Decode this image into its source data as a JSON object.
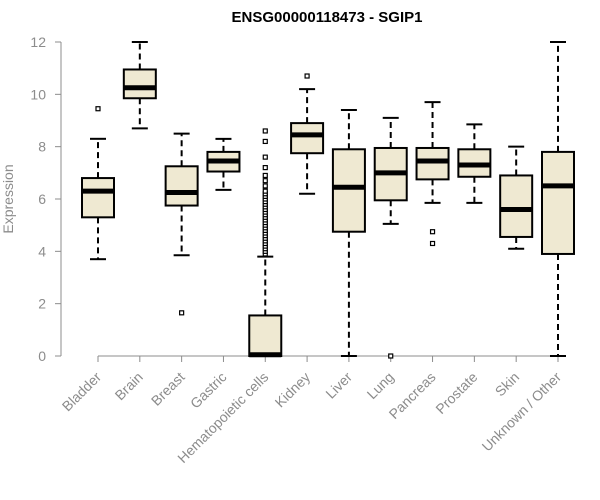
{
  "chart_data": {
    "type": "boxplot",
    "title": "ENSG00000118473 - SGIP1",
    "xlabel": "",
    "ylabel": "Expression",
    "ylim": [
      0,
      12
    ],
    "yticks": [
      "0",
      "2",
      "4",
      "6",
      "8",
      "10",
      "12"
    ],
    "categories": [
      "Bladder",
      "Brain",
      "Breast",
      "Gastric",
      "Hematopoietic cells",
      "Kidney",
      "Liver",
      "Lung",
      "Pancreas",
      "Prostate",
      "Skin",
      "Unknown / Other"
    ],
    "boxes": [
      {
        "name": "Bladder",
        "whisker_low": 3.7,
        "q1": 5.3,
        "median": 6.3,
        "q3": 6.8,
        "whisker_high": 8.3,
        "outliers": [
          9.45
        ]
      },
      {
        "name": "Brain",
        "whisker_low": 8.7,
        "q1": 9.85,
        "median": 10.25,
        "q3": 10.95,
        "whisker_high": 12.0,
        "outliers": []
      },
      {
        "name": "Breast",
        "whisker_low": 3.85,
        "q1": 5.75,
        "median": 6.25,
        "q3": 7.25,
        "whisker_high": 8.5,
        "outliers": [
          1.65
        ]
      },
      {
        "name": "Gastric",
        "whisker_low": 6.35,
        "q1": 7.05,
        "median": 7.45,
        "q3": 7.8,
        "whisker_high": 8.3,
        "outliers": []
      },
      {
        "name": "Hematopoietic cells",
        "whisker_low": 0.0,
        "q1": 0.0,
        "median": 0.05,
        "q3": 1.55,
        "whisker_high": 3.8,
        "outliers": [
          3.9,
          4.0,
          4.1,
          4.2,
          4.3,
          4.4,
          4.5,
          4.6,
          4.7,
          4.8,
          4.9,
          5.0,
          5.1,
          5.2,
          5.3,
          5.4,
          5.5,
          5.6,
          5.7,
          5.8,
          5.9,
          6.0,
          6.1,
          6.2,
          6.3,
          6.5,
          6.7,
          6.9,
          7.2,
          7.6,
          8.2,
          8.6
        ]
      },
      {
        "name": "Kidney",
        "whisker_low": 6.2,
        "q1": 7.75,
        "median": 8.45,
        "q3": 8.9,
        "whisker_high": 10.2,
        "outliers": [
          10.7
        ]
      },
      {
        "name": "Liver",
        "whisker_low": 0.0,
        "q1": 4.75,
        "median": 6.45,
        "q3": 7.9,
        "whisker_high": 9.4,
        "outliers": []
      },
      {
        "name": "Lung",
        "whisker_low": 5.05,
        "q1": 5.95,
        "median": 7.0,
        "q3": 7.95,
        "whisker_high": 9.1,
        "outliers": [
          0.0
        ]
      },
      {
        "name": "Pancreas",
        "whisker_low": 5.85,
        "q1": 6.75,
        "median": 7.45,
        "q3": 7.95,
        "whisker_high": 9.7,
        "outliers": [
          4.75,
          4.3
        ]
      },
      {
        "name": "Prostate",
        "whisker_low": 5.85,
        "q1": 6.85,
        "median": 7.3,
        "q3": 7.9,
        "whisker_high": 8.85,
        "outliers": []
      },
      {
        "name": "Skin",
        "whisker_low": 4.1,
        "q1": 4.55,
        "median": 5.6,
        "q3": 6.9,
        "whisker_high": 8.0,
        "outliers": []
      },
      {
        "name": "Unknown / Other",
        "whisker_low": 0.0,
        "q1": 3.9,
        "median": 6.5,
        "q3": 7.8,
        "whisker_high": 12.0,
        "outliers": []
      }
    ],
    "box_fill": "#efe9d2",
    "stroke_color": "#000000",
    "axis_color": "#8c8c8c",
    "grid": false,
    "legend": "none"
  }
}
